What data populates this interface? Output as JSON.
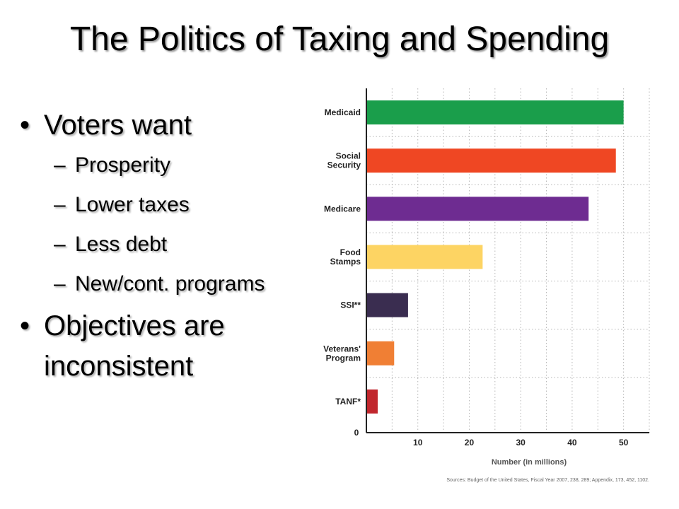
{
  "slide": {
    "title": "The Politics of Taxing and Spending",
    "bullets": [
      {
        "text": "Voters want",
        "subitems": [
          "Prosperity",
          "Lower taxes",
          "Less debt",
          "New/cont. programs"
        ]
      },
      {
        "text": "Objectives are",
        "continuation": "inconsistent"
      }
    ]
  },
  "chart_data": {
    "type": "bar",
    "orientation": "horizontal",
    "categories": [
      "Medicaid",
      "Social Security",
      "Medicare",
      "Food Stamps",
      "SSI**",
      "Veterans' Program",
      "TANF*"
    ],
    "category_lines": [
      [
        "Medicaid"
      ],
      [
        "Social",
        "Security"
      ],
      [
        "Medicare"
      ],
      [
        "Food",
        "Stamps"
      ],
      [
        "SSI**"
      ],
      [
        "Veterans'",
        "Program"
      ],
      [
        "TANF*"
      ]
    ],
    "values": [
      50,
      48.5,
      43.2,
      22.6,
      8.1,
      5.4,
      2.2
    ],
    "colors": [
      "#1a9e4b",
      "#ef4723",
      "#6e2c91",
      "#fdd463",
      "#3a2d50",
      "#f07f34",
      "#c1272d"
    ],
    "xlabel": "Number (in millions)",
    "ylabel": "",
    "xlim": [
      0,
      55
    ],
    "xticks": [
      "0",
      "10",
      "20",
      "30",
      "40",
      "50"
    ],
    "grid": true,
    "source": "Sources: Budget of the United States, Fiscal Year 2007, 238, 289; Appendix, 173, 452, 1102."
  }
}
